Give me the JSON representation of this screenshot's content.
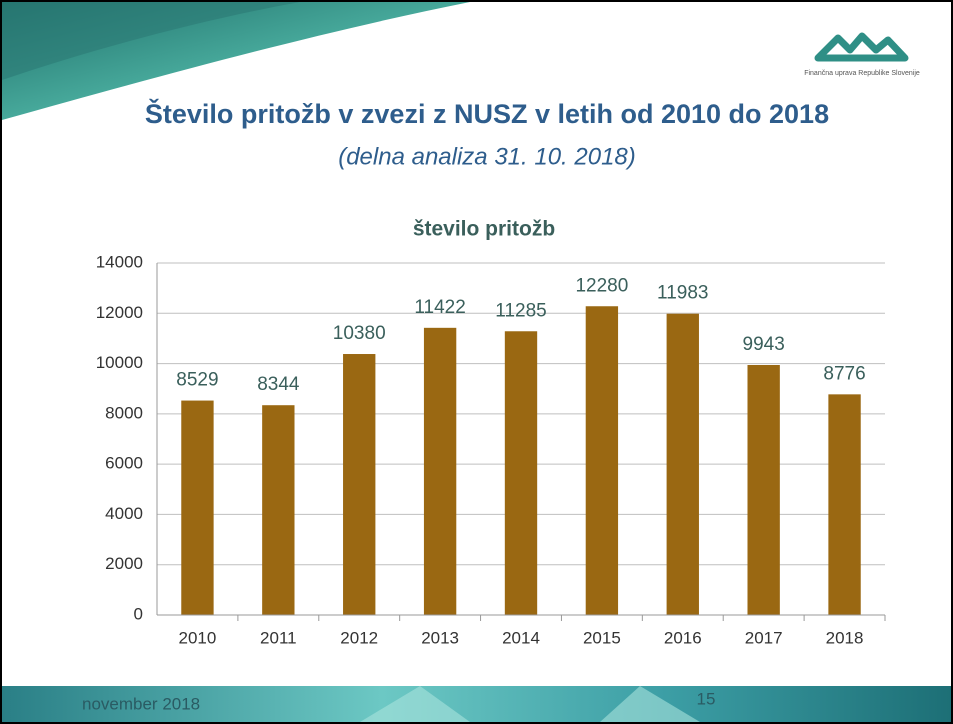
{
  "header": {
    "title": "Število pritožb v zvezi z NUSZ v letih od 2010 do 2018",
    "subtitle": "(delna analiza 31. 10. 2018)",
    "logo_text": "Finančna uprava Republike Slovenije"
  },
  "chart_data": {
    "type": "bar",
    "title": "število pritožb",
    "categories": [
      "2010",
      "2011",
      "2012",
      "2013",
      "2014",
      "2015",
      "2016",
      "2017",
      "2018"
    ],
    "values": [
      8529,
      8344,
      10380,
      11422,
      11285,
      12280,
      11983,
      9943,
      8776
    ],
    "color": "#9a6812",
    "ylim": [
      0,
      14000
    ],
    "yticks": [
      0,
      2000,
      4000,
      6000,
      8000,
      10000,
      12000,
      14000
    ],
    "grid": true
  },
  "footer": {
    "date": "november 2018",
    "page": "15"
  }
}
